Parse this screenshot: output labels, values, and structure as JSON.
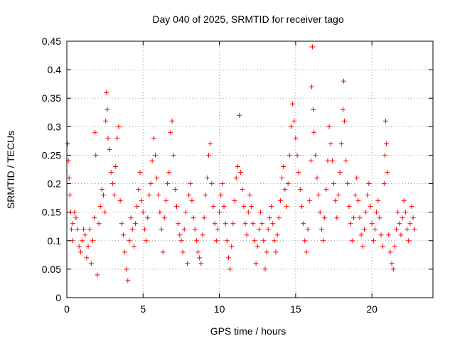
{
  "chart_data": {
    "type": "scatter",
    "title": "Day 040 of 2025, SRMTID for receiver tago",
    "xlabel": "GPS time / hours",
    "ylabel": "SRMTID / TECUs",
    "xlim": [
      0,
      24
    ],
    "ylim": [
      0,
      0.45
    ],
    "x_ticks": [
      0,
      5,
      10,
      15,
      20
    ],
    "x_tick_labels": [
      "0",
      "5",
      "10",
      "15",
      "20"
    ],
    "y_ticks": [
      0,
      0.05,
      0.1,
      0.15,
      0.2,
      0.25,
      0.3,
      0.35,
      0.4,
      0.45
    ],
    "y_tick_labels": [
      "0",
      "0.05",
      "0.1",
      "0.15",
      "0.2",
      "0.25",
      "0.3",
      "0.35",
      "0.4",
      "0.45"
    ],
    "grid": true,
    "marker": "+",
    "color": "#ff0000",
    "series": [
      {
        "name": "tago",
        "points": [
          [
            0.05,
            0.27
          ],
          [
            0.1,
            0.24
          ],
          [
            0.15,
            0.21
          ],
          [
            0.2,
            0.18
          ],
          [
            0.25,
            0.15
          ],
          [
            0.3,
            0.12
          ],
          [
            0.35,
            0.1
          ],
          [
            0.4,
            0.13
          ],
          [
            0.5,
            0.15
          ],
          [
            0.6,
            0.14
          ],
          [
            0.7,
            0.12
          ],
          [
            0.8,
            0.09
          ],
          [
            0.9,
            0.08
          ],
          [
            1.0,
            0.1
          ],
          [
            1.1,
            0.12
          ],
          [
            1.2,
            0.11
          ],
          [
            1.3,
            0.07
          ],
          [
            1.4,
            0.09
          ],
          [
            1.5,
            0.12
          ],
          [
            1.6,
            0.06
          ],
          [
            1.7,
            0.1
          ],
          [
            1.8,
            0.14
          ],
          [
            1.85,
            0.29
          ],
          [
            1.9,
            0.25
          ],
          [
            2.0,
            0.04
          ],
          [
            2.1,
            0.13
          ],
          [
            2.2,
            0.16
          ],
          [
            2.3,
            0.19
          ],
          [
            2.4,
            0.18
          ],
          [
            2.5,
            0.15
          ],
          [
            2.55,
            0.31
          ],
          [
            2.6,
            0.36
          ],
          [
            2.65,
            0.33
          ],
          [
            2.7,
            0.28
          ],
          [
            2.8,
            0.26
          ],
          [
            2.9,
            0.22
          ],
          [
            3.0,
            0.2
          ],
          [
            3.1,
            0.18
          ],
          [
            3.2,
            0.23
          ],
          [
            3.3,
            0.28
          ],
          [
            3.4,
            0.3
          ],
          [
            3.5,
            0.17
          ],
          [
            3.6,
            0.13
          ],
          [
            3.7,
            0.11
          ],
          [
            3.8,
            0.08
          ],
          [
            3.9,
            0.05
          ],
          [
            4.0,
            0.03
          ],
          [
            4.1,
            0.1
          ],
          [
            4.2,
            0.14
          ],
          [
            4.3,
            0.12
          ],
          [
            4.4,
            0.09
          ],
          [
            4.5,
            0.13
          ],
          [
            4.6,
            0.16
          ],
          [
            4.7,
            0.19
          ],
          [
            4.8,
            0.22
          ],
          [
            4.9,
            0.17
          ],
          [
            5.0,
            0.15
          ],
          [
            5.1,
            0.12
          ],
          [
            5.2,
            0.1
          ],
          [
            5.3,
            0.14
          ],
          [
            5.4,
            0.18
          ],
          [
            5.5,
            0.2
          ],
          [
            5.6,
            0.24
          ],
          [
            5.7,
            0.28
          ],
          [
            5.8,
            0.25
          ],
          [
            5.9,
            0.21
          ],
          [
            6.0,
            0.18
          ],
          [
            6.1,
            0.15
          ],
          [
            6.2,
            0.12
          ],
          [
            6.3,
            0.08
          ],
          [
            6.4,
            0.14
          ],
          [
            6.5,
            0.17
          ],
          [
            6.6,
            0.2
          ],
          [
            6.7,
            0.22
          ],
          [
            6.8,
            0.29
          ],
          [
            6.9,
            0.31
          ],
          [
            7.0,
            0.25
          ],
          [
            7.1,
            0.19
          ],
          [
            7.2,
            0.16
          ],
          [
            7.3,
            0.13
          ],
          [
            7.4,
            0.11
          ],
          [
            7.5,
            0.1
          ],
          [
            7.6,
            0.08
          ],
          [
            7.7,
            0.12
          ],
          [
            7.8,
            0.15
          ],
          [
            7.9,
            0.06
          ],
          [
            8.0,
            0.18
          ],
          [
            8.1,
            0.2
          ],
          [
            8.2,
            0.17
          ],
          [
            8.3,
            0.14
          ],
          [
            8.4,
            0.12
          ],
          [
            8.5,
            0.1
          ],
          [
            8.6,
            0.08
          ],
          [
            8.7,
            0.07
          ],
          [
            8.8,
            0.06
          ],
          [
            8.9,
            0.11
          ],
          [
            9.0,
            0.14
          ],
          [
            9.1,
            0.18
          ],
          [
            9.2,
            0.21
          ],
          [
            9.3,
            0.25
          ],
          [
            9.4,
            0.27
          ],
          [
            9.5,
            0.2
          ],
          [
            9.6,
            0.16
          ],
          [
            9.7,
            0.13
          ],
          [
            9.8,
            0.1
          ],
          [
            9.9,
            0.12
          ],
          [
            10.0,
            0.15
          ],
          [
            10.1,
            0.18
          ],
          [
            10.2,
            0.2
          ],
          [
            10.3,
            0.16
          ],
          [
            10.4,
            0.13
          ],
          [
            10.5,
            0.1
          ],
          [
            10.6,
            0.07
          ],
          [
            10.7,
            0.05
          ],
          [
            10.8,
            0.09
          ],
          [
            10.9,
            0.13
          ],
          [
            11.0,
            0.17
          ],
          [
            11.1,
            0.21
          ],
          [
            11.2,
            0.23
          ],
          [
            11.3,
            0.32
          ],
          [
            11.4,
            0.22
          ],
          [
            11.5,
            0.19
          ],
          [
            11.6,
            0.16
          ],
          [
            11.7,
            0.13
          ],
          [
            11.8,
            0.11
          ],
          [
            11.9,
            0.15
          ],
          [
            12.0,
            0.18
          ],
          [
            12.1,
            0.16
          ],
          [
            12.2,
            0.13
          ],
          [
            12.3,
            0.1
          ],
          [
            12.4,
            0.06
          ],
          [
            12.5,
            0.09
          ],
          [
            12.6,
            0.12
          ],
          [
            12.7,
            0.15
          ],
          [
            12.8,
            0.13
          ],
          [
            12.9,
            0.1
          ],
          [
            13.0,
            0.05
          ],
          [
            13.1,
            0.08
          ],
          [
            13.2,
            0.12
          ],
          [
            13.3,
            0.14
          ],
          [
            13.4,
            0.16
          ],
          [
            13.5,
            0.13
          ],
          [
            13.6,
            0.1
          ],
          [
            13.7,
            0.08
          ],
          [
            13.8,
            0.11
          ],
          [
            13.9,
            0.14
          ],
          [
            14.0,
            0.17
          ],
          [
            14.1,
            0.21
          ],
          [
            14.2,
            0.23
          ],
          [
            14.3,
            0.19
          ],
          [
            14.4,
            0.16
          ],
          [
            14.5,
            0.2
          ],
          [
            14.6,
            0.25
          ],
          [
            14.7,
            0.3
          ],
          [
            14.8,
            0.34
          ],
          [
            14.9,
            0.31
          ],
          [
            15.0,
            0.28
          ],
          [
            15.1,
            0.25
          ],
          [
            15.2,
            0.22
          ],
          [
            15.3,
            0.19
          ],
          [
            15.4,
            0.16
          ],
          [
            15.5,
            0.13
          ],
          [
            15.6,
            0.1
          ],
          [
            15.7,
            0.08
          ],
          [
            15.8,
            0.12
          ],
          [
            15.9,
            0.17
          ],
          [
            16.0,
            0.24
          ],
          [
            16.05,
            0.37
          ],
          [
            16.1,
            0.44
          ],
          [
            16.15,
            0.33
          ],
          [
            16.2,
            0.29
          ],
          [
            16.3,
            0.25
          ],
          [
            16.4,
            0.21
          ],
          [
            16.5,
            0.18
          ],
          [
            16.6,
            0.15
          ],
          [
            16.7,
            0.12
          ],
          [
            16.8,
            0.1
          ],
          [
            16.9,
            0.14
          ],
          [
            17.0,
            0.19
          ],
          [
            17.1,
            0.24
          ],
          [
            17.2,
            0.3
          ],
          [
            17.3,
            0.27
          ],
          [
            17.4,
            0.24
          ],
          [
            17.5,
            0.2
          ],
          [
            17.6,
            0.17
          ],
          [
            17.7,
            0.14
          ],
          [
            17.8,
            0.18
          ],
          [
            17.9,
            0.22
          ],
          [
            18.0,
            0.27
          ],
          [
            18.1,
            0.33
          ],
          [
            18.15,
            0.38
          ],
          [
            18.2,
            0.31
          ],
          [
            18.3,
            0.24
          ],
          [
            18.4,
            0.2
          ],
          [
            18.5,
            0.16
          ],
          [
            18.6,
            0.13
          ],
          [
            18.7,
            0.1
          ],
          [
            18.8,
            0.14
          ],
          [
            18.9,
            0.18
          ],
          [
            19.0,
            0.21
          ],
          [
            19.1,
            0.17
          ],
          [
            19.2,
            0.14
          ],
          [
            19.3,
            0.11
          ],
          [
            19.4,
            0.09
          ],
          [
            19.5,
            0.12
          ],
          [
            19.6,
            0.15
          ],
          [
            19.7,
            0.18
          ],
          [
            19.8,
            0.2
          ],
          [
            19.9,
            0.16
          ],
          [
            20.0,
            0.13
          ],
          [
            20.1,
            0.1
          ],
          [
            20.2,
            0.12
          ],
          [
            20.3,
            0.15
          ],
          [
            20.4,
            0.17
          ],
          [
            20.5,
            0.14
          ],
          [
            20.6,
            0.11
          ],
          [
            20.7,
            0.09
          ],
          [
            20.8,
            0.2
          ],
          [
            20.85,
            0.25
          ],
          [
            20.9,
            0.31
          ],
          [
            20.95,
            0.27
          ],
          [
            21.0,
            0.22
          ],
          [
            21.1,
            0.11
          ],
          [
            21.2,
            0.08
          ],
          [
            21.3,
            0.06
          ],
          [
            21.4,
            0.05
          ],
          [
            21.5,
            0.09
          ],
          [
            21.6,
            0.12
          ],
          [
            21.7,
            0.15
          ],
          [
            21.8,
            0.13
          ],
          [
            21.9,
            0.11
          ],
          [
            22.0,
            0.14
          ],
          [
            22.1,
            0.17
          ],
          [
            22.2,
            0.15
          ],
          [
            22.3,
            0.12
          ],
          [
            22.4,
            0.1
          ],
          [
            22.5,
            0.13
          ],
          [
            22.6,
            0.16
          ],
          [
            22.7,
            0.14
          ],
          [
            22.8,
            0.12
          ]
        ]
      }
    ]
  }
}
